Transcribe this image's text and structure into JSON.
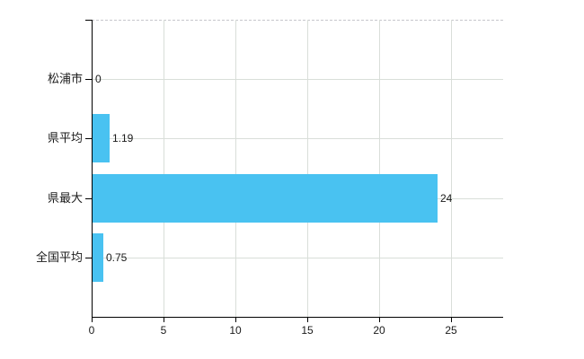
{
  "chart_data": {
    "type": "bar",
    "orientation": "horizontal",
    "title": "",
    "xlabel": "",
    "ylabel": "",
    "categories": [
      "松浦市",
      "県平均",
      "県最大",
      "全国平均"
    ],
    "values": [
      0,
      1.19,
      24,
      0.75
    ],
    "value_labels": [
      "0",
      "1.19",
      "24",
      "0.75"
    ],
    "xticks": [
      0,
      5,
      10,
      15,
      20,
      25
    ],
    "xtick_labels": [
      "0",
      "5",
      "10",
      "15",
      "20",
      "25"
    ],
    "xlim": [
      0,
      28.6
    ],
    "grid": true,
    "legend": false,
    "colors": {
      "bar": "#49c2f1",
      "grid": "#d9ded9",
      "top_border": "#c6c7cc",
      "axis": "#000000",
      "text": "#1a1a1a",
      "background": "#ffffff"
    }
  }
}
